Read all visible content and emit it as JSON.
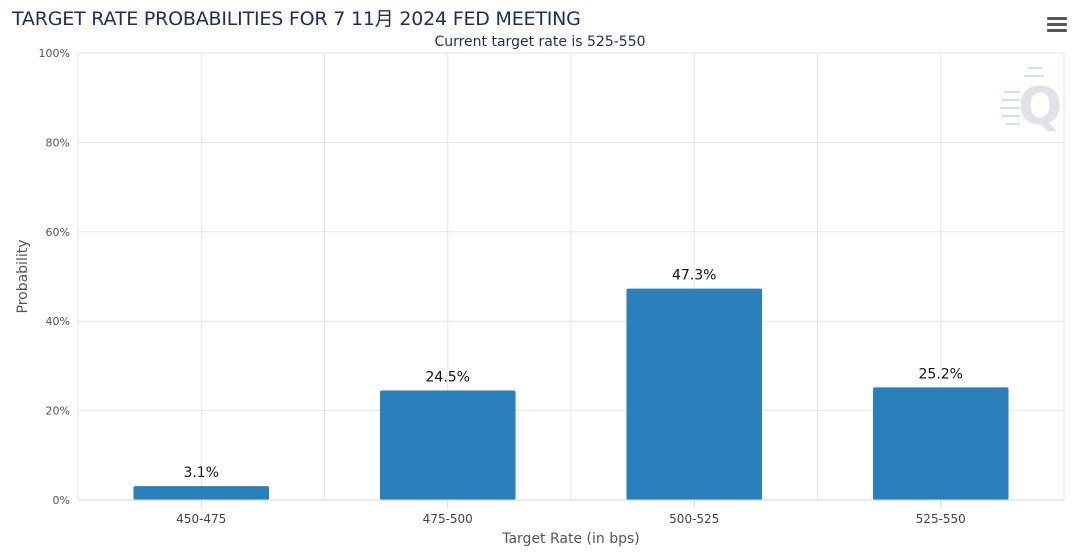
{
  "chart_data": {
    "type": "bar",
    "title": "TARGET RATE PROBABILITIES FOR 7 11月 2024 FED MEETING",
    "subtitle": "Current target rate is 525-550",
    "xlabel": "Target Rate (in bps)",
    "ylabel": "Probability",
    "categories": [
      "450-475",
      "475-500",
      "500-525",
      "525-550"
    ],
    "values": [
      3.1,
      24.5,
      47.3,
      25.2
    ],
    "data_labels": [
      "3.1%",
      "24.5%",
      "47.3%",
      "25.2%"
    ],
    "ylim": [
      0,
      100
    ],
    "y_ticks": [
      0,
      20,
      40,
      60,
      80,
      100
    ],
    "y_tick_labels": [
      "0%",
      "20%",
      "40%",
      "60%",
      "80%",
      "100%"
    ],
    "grid": true,
    "bar_color": "#2b7fba"
  },
  "icons": {
    "menu": "hamburger-menu-icon",
    "watermark": "q-logo-icon"
  }
}
